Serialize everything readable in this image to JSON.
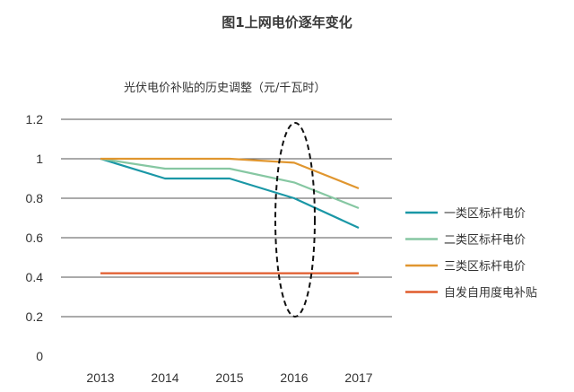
{
  "chart_data": {
    "type": "line",
    "title": "图1上网电价逐年变化",
    "subtitle": "光伏电价补贴的历史调整（元/千瓦时）",
    "xlabel": "",
    "ylabel": "",
    "categories": [
      "2013",
      "2014",
      "2015",
      "2016",
      "2017"
    ],
    "ylim": [
      0,
      1.2
    ],
    "yticks": [
      "0",
      "0.2",
      "0.4",
      "0.6",
      "0.8",
      "1",
      "1.2"
    ],
    "grid": true,
    "legend_position": "right",
    "highlight": {
      "category": "2016",
      "style": "dashed-ellipse"
    },
    "series": [
      {
        "name": "一类区标杆电价",
        "color": "#1a97a6",
        "values": [
          1.0,
          0.9,
          0.9,
          0.8,
          0.65
        ]
      },
      {
        "name": "二类区标杆电价",
        "color": "#86c7a2",
        "values": [
          1.0,
          0.95,
          0.95,
          0.88,
          0.75
        ]
      },
      {
        "name": "三类区标杆电价",
        "color": "#e0962f",
        "values": [
          1.0,
          1.0,
          1.0,
          0.98,
          0.85
        ]
      },
      {
        "name": "自发自用度电补贴",
        "color": "#e05b2c",
        "values": [
          0.42,
          0.42,
          0.42,
          0.42,
          0.42
        ]
      }
    ]
  }
}
